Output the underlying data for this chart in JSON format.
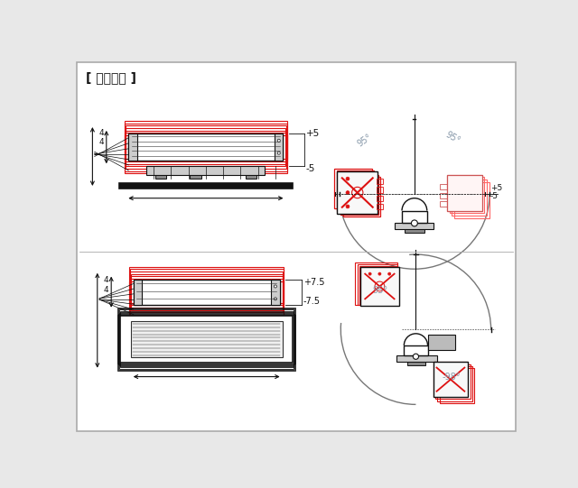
{
  "title": "[ 調整機構 ]",
  "bg_color": "#e8e8e8",
  "inner_bg": "#ffffff",
  "border_color": "#aaaaaa",
  "dim_color": "#8899aa",
  "red": "#dd1111",
  "black": "#111111",
  "gray": "#777777",
  "dark_gray": "#333333",
  "mid_gray": "#888888",
  "light_gray": "#cccccc",
  "mount_gray": "#bbbbbb",
  "body_gray": "#999999"
}
